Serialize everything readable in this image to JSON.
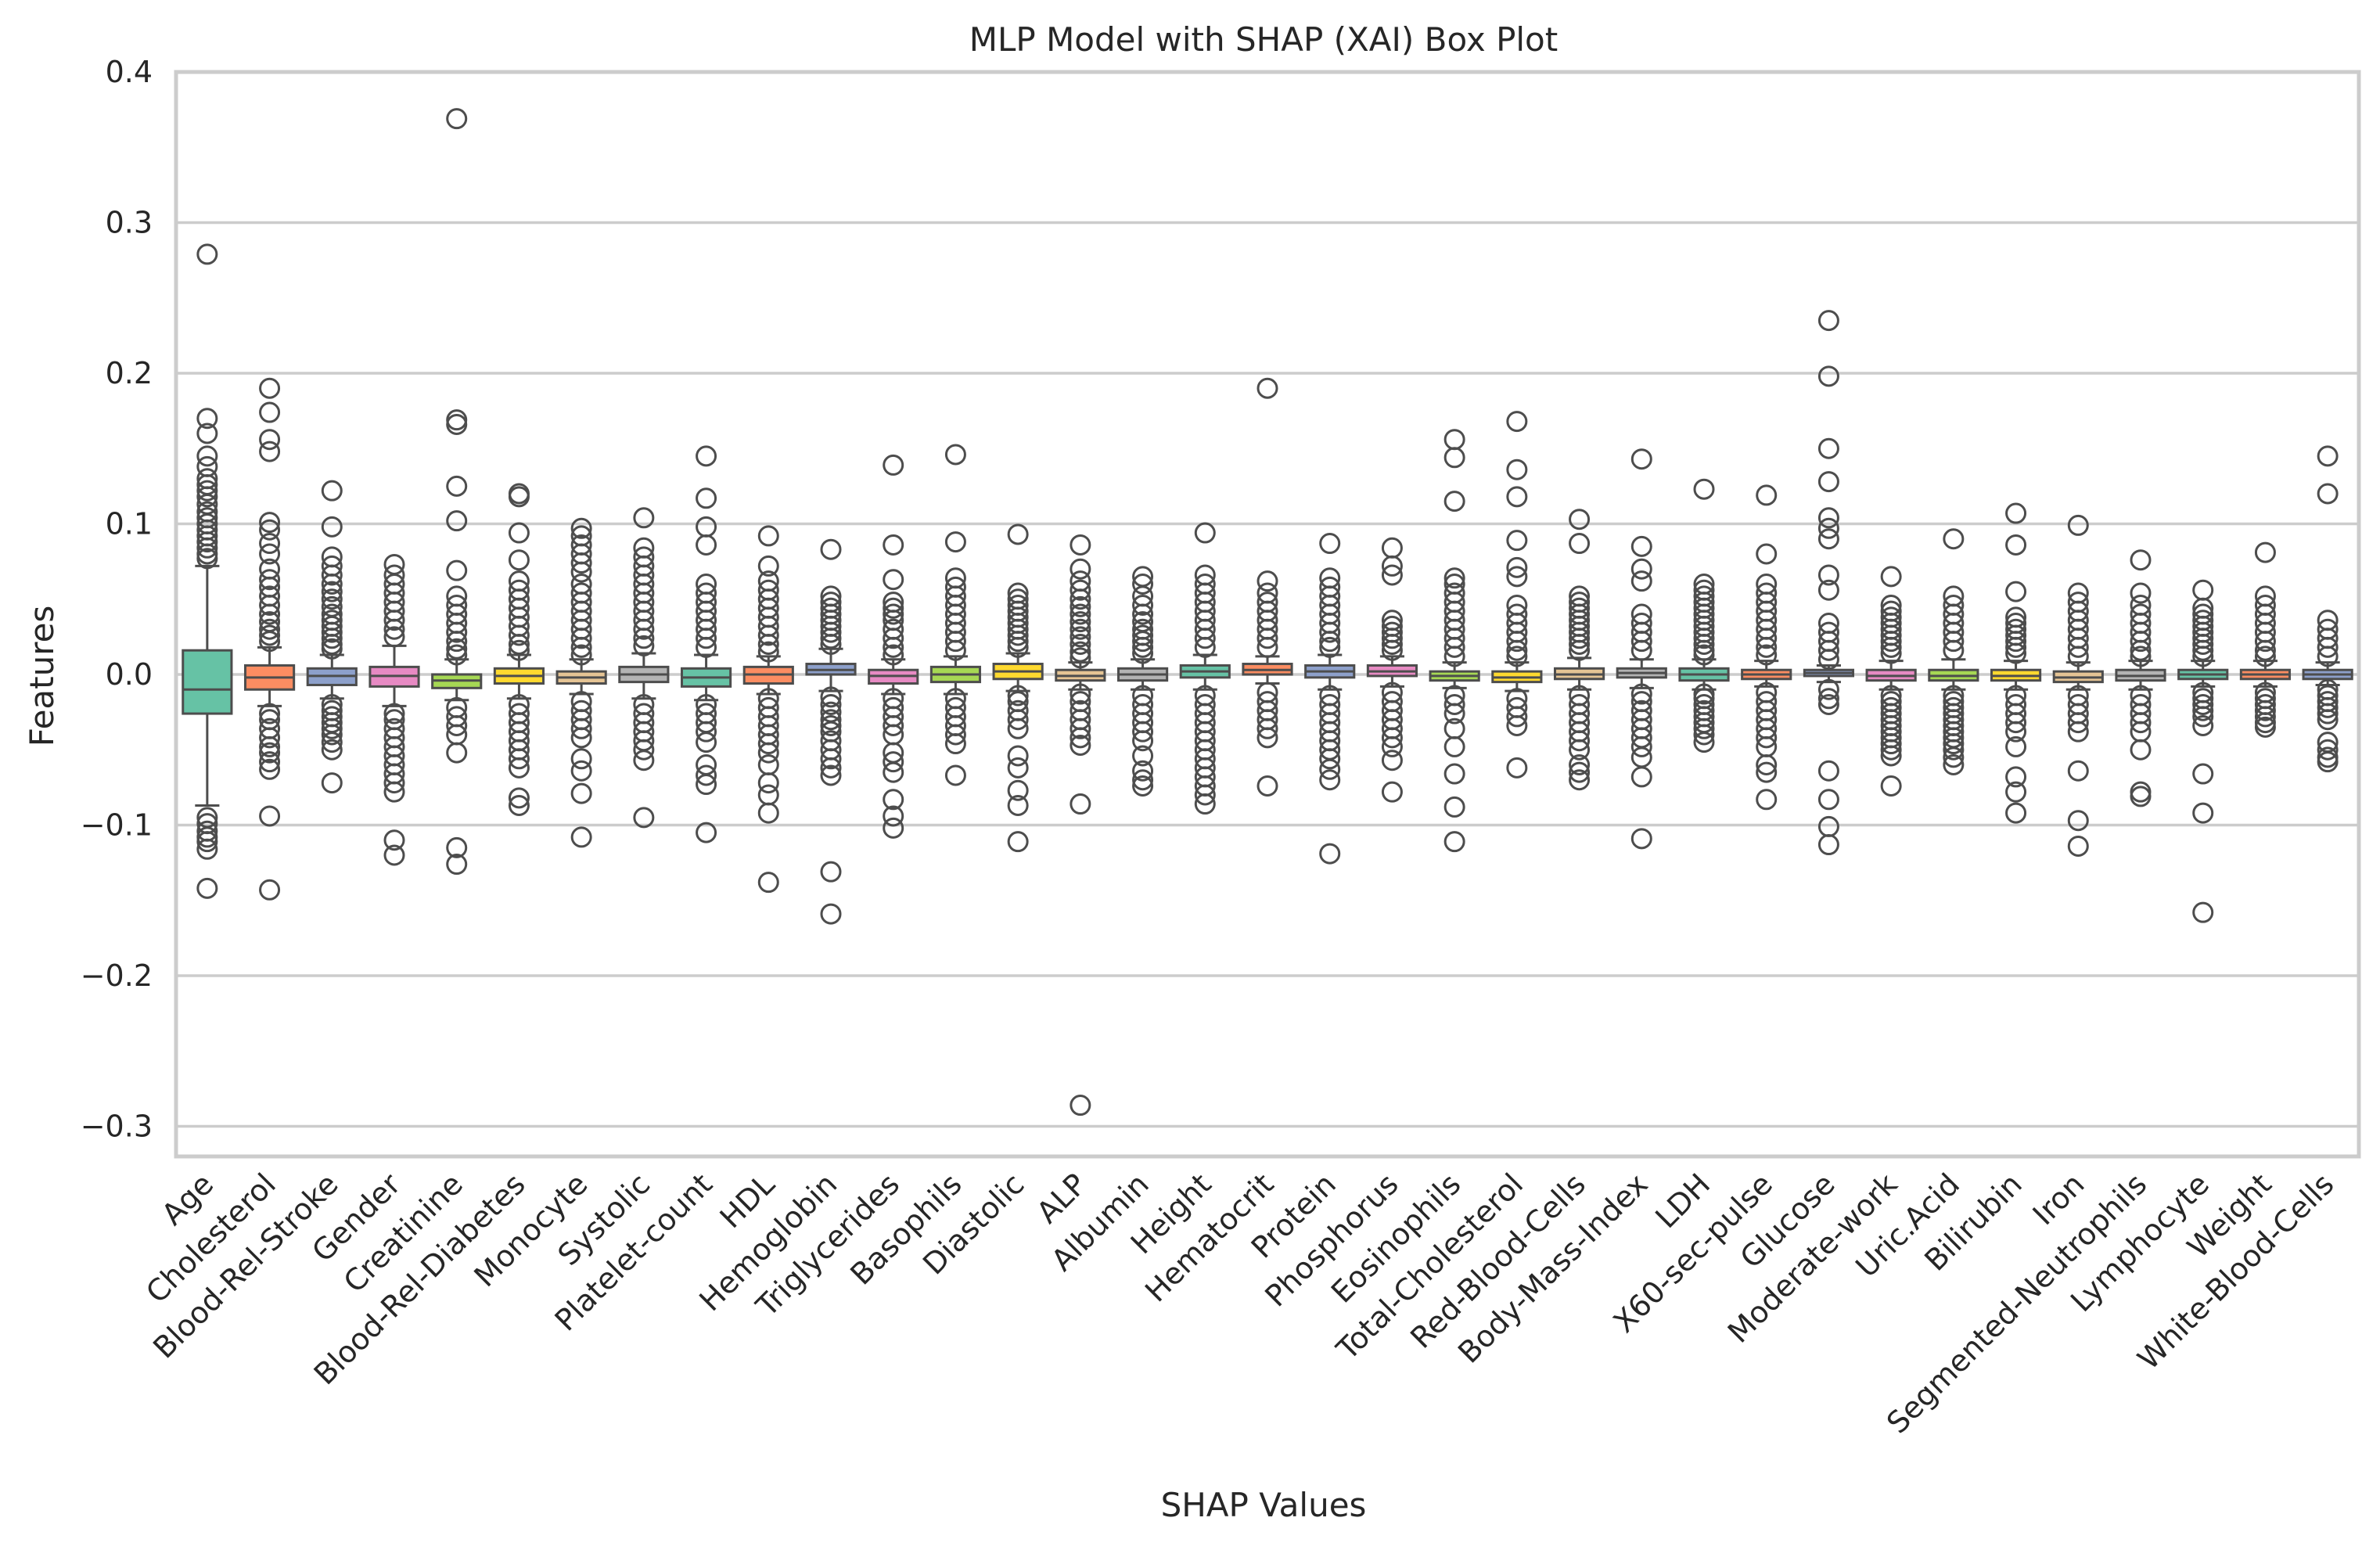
{
  "chart_data": {
    "type": "box",
    "title": "MLP Model with SHAP (XAI) Box Plot",
    "xlabel": "SHAP Values",
    "ylabel": "Features",
    "ylim": [
      -0.32,
      0.4
    ],
    "yticks": [
      -0.3,
      -0.2,
      -0.1,
      0.0,
      0.1,
      0.2,
      0.3,
      0.4
    ],
    "ytick_labels": [
      "−0.3",
      "−0.2",
      "−0.1",
      "0.0",
      "0.1",
      "0.2",
      "0.3",
      "0.4"
    ],
    "grid": true,
    "grid_axis": "y",
    "palette": [
      "#66c2a5",
      "#fc8d62",
      "#8da0cb",
      "#e78ac3",
      "#a6d854",
      "#ffd92f",
      "#e5c494",
      "#b3b3b3"
    ],
    "categories": [
      "Age",
      "Cholesterol",
      "Blood-Rel-Stroke",
      "Gender",
      "Creatinine",
      "Blood-Rel-Diabetes",
      "Monocyte",
      "Systolic",
      "Platelet-count",
      "HDL",
      "Hemoglobin",
      "Triglycerides",
      "Basophils",
      "Diastolic",
      "ALP",
      "Albumin",
      "Height",
      "Hematocrit",
      "Protein",
      "Phosphorus",
      "Eosinophils",
      "Total-Cholesterol",
      "Red-Blood-Cells",
      "Body-Mass-Index",
      "LDH",
      "X60-sec-pulse",
      "Glucose",
      "Moderate-work",
      "Uric.Acid",
      "Bilirubin",
      "Iron",
      "Segmented-Neutrophils",
      "Lymphocyte",
      "Weight",
      "White-Blood-Cells"
    ],
    "boxes": [
      {
        "q1": -0.026,
        "median": -0.01,
        "q3": 0.016,
        "whislo": -0.087,
        "whishi": 0.072,
        "fliers": [
          0.279,
          0.17,
          0.16,
          0.145,
          0.138,
          0.13,
          0.126,
          0.122,
          0.118,
          0.113,
          0.108,
          0.104,
          0.1,
          0.096,
          0.092,
          0.088,
          0.084,
          0.08,
          0.077,
          -0.095,
          -0.099,
          -0.104,
          -0.108,
          -0.111,
          -0.116,
          -0.142
        ]
      },
      {
        "q1": -0.01,
        "median": -0.002,
        "q3": 0.006,
        "whislo": -0.021,
        "whishi": 0.018,
        "fliers": [
          0.19,
          0.174,
          0.156,
          0.148,
          0.101,
          0.096,
          0.087,
          0.08,
          0.07,
          0.063,
          0.058,
          0.052,
          0.046,
          0.04,
          0.035,
          0.03,
          0.026,
          0.022,
          -0.026,
          -0.03,
          -0.036,
          -0.042,
          -0.048,
          -0.052,
          -0.058,
          -0.063,
          -0.094,
          -0.143
        ]
      },
      {
        "q1": -0.007,
        "median": -0.001,
        "q3": 0.004,
        "whislo": -0.016,
        "whishi": 0.013,
        "fliers": [
          0.122,
          0.098,
          0.078,
          0.072,
          0.066,
          0.06,
          0.055,
          0.05,
          0.045,
          0.04,
          0.036,
          0.032,
          0.028,
          0.024,
          0.02,
          0.017,
          -0.02,
          -0.024,
          -0.028,
          -0.032,
          -0.036,
          -0.04,
          -0.045,
          -0.05,
          -0.072
        ]
      },
      {
        "q1": -0.008,
        "median": -0.001,
        "q3": 0.005,
        "whislo": -0.021,
        "whishi": 0.019,
        "fliers": [
          0.073,
          0.066,
          0.06,
          0.054,
          0.048,
          0.042,
          0.036,
          0.03,
          0.025,
          -0.026,
          -0.03,
          -0.036,
          -0.042,
          -0.048,
          -0.054,
          -0.06,
          -0.066,
          -0.072,
          -0.078,
          -0.11,
          -0.12
        ]
      },
      {
        "q1": -0.009,
        "median": -0.004,
        "q3": 0.0,
        "whislo": -0.017,
        "whishi": 0.01,
        "fliers": [
          0.369,
          0.169,
          0.166,
          0.125,
          0.102,
          0.069,
          0.052,
          0.046,
          0.04,
          0.034,
          0.028,
          0.022,
          0.017,
          0.013,
          -0.022,
          -0.028,
          -0.034,
          -0.04,
          -0.052,
          -0.115,
          -0.126
        ]
      },
      {
        "q1": -0.006,
        "median": -0.001,
        "q3": 0.004,
        "whislo": -0.016,
        "whishi": 0.013,
        "fliers": [
          0.12,
          0.118,
          0.094,
          0.076,
          0.062,
          0.056,
          0.05,
          0.044,
          0.038,
          0.032,
          0.026,
          0.02,
          0.016,
          -0.02,
          -0.026,
          -0.032,
          -0.038,
          -0.044,
          -0.05,
          -0.056,
          -0.062,
          -0.082,
          -0.087
        ]
      },
      {
        "q1": -0.006,
        "median": -0.002,
        "q3": 0.002,
        "whislo": -0.013,
        "whishi": 0.01,
        "fliers": [
          0.097,
          0.092,
          0.086,
          0.08,
          0.074,
          0.068,
          0.06,
          0.054,
          0.048,
          0.042,
          0.036,
          0.03,
          0.024,
          0.018,
          0.013,
          -0.018,
          -0.024,
          -0.03,
          -0.036,
          -0.042,
          -0.056,
          -0.064,
          -0.079,
          -0.108
        ]
      },
      {
        "q1": -0.005,
        "median": 0.0,
        "q3": 0.005,
        "whislo": -0.016,
        "whishi": 0.014,
        "fliers": [
          0.104,
          0.084,
          0.078,
          0.072,
          0.066,
          0.06,
          0.054,
          0.048,
          0.042,
          0.036,
          0.03,
          0.024,
          0.019,
          -0.02,
          -0.026,
          -0.032,
          -0.038,
          -0.044,
          -0.05,
          -0.057,
          -0.095
        ]
      },
      {
        "q1": -0.008,
        "median": -0.002,
        "q3": 0.004,
        "whislo": -0.017,
        "whishi": 0.013,
        "fliers": [
          0.145,
          0.117,
          0.098,
          0.086,
          0.06,
          0.054,
          0.048,
          0.042,
          0.036,
          0.03,
          0.024,
          0.018,
          -0.02,
          -0.026,
          -0.032,
          -0.038,
          -0.045,
          -0.06,
          -0.067,
          -0.073,
          -0.105
        ]
      },
      {
        "q1": -0.006,
        "median": 0.0,
        "q3": 0.005,
        "whislo": -0.013,
        "whishi": 0.012,
        "fliers": [
          0.092,
          0.072,
          0.062,
          0.056,
          0.05,
          0.044,
          0.038,
          0.032,
          0.026,
          0.02,
          0.015,
          -0.016,
          -0.022,
          -0.028,
          -0.034,
          -0.04,
          -0.046,
          -0.052,
          -0.06,
          -0.072,
          -0.08,
          -0.092,
          -0.138
        ]
      },
      {
        "q1": 0.0,
        "median": 0.003,
        "q3": 0.007,
        "whislo": -0.011,
        "whishi": 0.017,
        "fliers": [
          0.083,
          0.052,
          0.048,
          0.044,
          0.04,
          0.036,
          0.032,
          0.028,
          0.024,
          0.02,
          -0.015,
          -0.02,
          -0.025,
          -0.03,
          -0.034,
          -0.038,
          -0.044,
          -0.05,
          -0.056,
          -0.062,
          -0.067,
          -0.131,
          -0.159
        ]
      },
      {
        "q1": -0.006,
        "median": -0.001,
        "q3": 0.003,
        "whislo": -0.013,
        "whishi": 0.01,
        "fliers": [
          0.139,
          0.086,
          0.063,
          0.048,
          0.044,
          0.04,
          0.036,
          0.03,
          0.024,
          0.018,
          0.013,
          -0.016,
          -0.022,
          -0.028,
          -0.034,
          -0.04,
          -0.052,
          -0.058,
          -0.065,
          -0.083,
          -0.094,
          -0.102
        ]
      },
      {
        "q1": -0.005,
        "median": 0.0,
        "q3": 0.005,
        "whislo": -0.013,
        "whishi": 0.012,
        "fliers": [
          0.146,
          0.088,
          0.064,
          0.058,
          0.052,
          0.046,
          0.04,
          0.034,
          0.028,
          0.022,
          0.016,
          -0.016,
          -0.022,
          -0.028,
          -0.034,
          -0.04,
          -0.046,
          -0.067
        ]
      },
      {
        "q1": -0.003,
        "median": 0.002,
        "q3": 0.007,
        "whislo": -0.011,
        "whishi": 0.014,
        "fliers": [
          0.093,
          0.054,
          0.05,
          0.046,
          0.042,
          0.038,
          0.034,
          0.03,
          0.026,
          0.022,
          0.018,
          -0.014,
          -0.018,
          -0.024,
          -0.03,
          -0.036,
          -0.054,
          -0.062,
          -0.077,
          -0.087,
          -0.111
        ]
      },
      {
        "q1": -0.004,
        "median": -0.001,
        "q3": 0.003,
        "whislo": -0.01,
        "whishi": 0.008,
        "fliers": [
          0.086,
          0.07,
          0.062,
          0.056,
          0.05,
          0.045,
          0.04,
          0.035,
          0.03,
          0.025,
          0.02,
          0.015,
          0.011,
          -0.013,
          -0.018,
          -0.024,
          -0.03,
          -0.036,
          -0.042,
          -0.047,
          -0.086,
          -0.286
        ]
      },
      {
        "q1": -0.004,
        "median": 0.0,
        "q3": 0.004,
        "whislo": -0.01,
        "whishi": 0.01,
        "fliers": [
          0.065,
          0.06,
          0.052,
          0.046,
          0.04,
          0.035,
          0.03,
          0.026,
          0.022,
          0.018,
          0.014,
          -0.014,
          -0.02,
          -0.026,
          -0.032,
          -0.038,
          -0.044,
          -0.054,
          -0.064,
          -0.07,
          -0.074
        ]
      },
      {
        "q1": -0.002,
        "median": 0.002,
        "q3": 0.006,
        "whislo": -0.01,
        "whishi": 0.013,
        "fliers": [
          0.094,
          0.066,
          0.06,
          0.054,
          0.048,
          0.042,
          0.036,
          0.03,
          0.024,
          0.018,
          -0.014,
          -0.02,
          -0.026,
          -0.032,
          -0.038,
          -0.044,
          -0.05,
          -0.056,
          -0.062,
          -0.068,
          -0.074,
          -0.08,
          -0.086
        ]
      },
      {
        "q1": 0.0,
        "median": 0.003,
        "q3": 0.007,
        "whislo": -0.006,
        "whishi": 0.012,
        "fliers": [
          0.19,
          0.062,
          0.054,
          0.048,
          0.042,
          0.036,
          0.03,
          0.024,
          0.018,
          -0.012,
          -0.018,
          -0.024,
          -0.03,
          -0.036,
          -0.042,
          -0.074
        ]
      },
      {
        "q1": -0.002,
        "median": 0.002,
        "q3": 0.006,
        "whislo": -0.01,
        "whishi": 0.013,
        "fliers": [
          0.087,
          0.064,
          0.058,
          0.052,
          0.046,
          0.04,
          0.034,
          0.028,
          0.022,
          0.018,
          -0.014,
          -0.02,
          -0.026,
          -0.032,
          -0.038,
          -0.044,
          -0.05,
          -0.056,
          -0.063,
          -0.07,
          -0.119
        ]
      },
      {
        "q1": -0.001,
        "median": 0.002,
        "q3": 0.006,
        "whislo": -0.008,
        "whishi": 0.012,
        "fliers": [
          0.084,
          0.072,
          0.066,
          0.036,
          0.032,
          0.028,
          0.024,
          0.02,
          0.016,
          -0.012,
          -0.018,
          -0.024,
          -0.03,
          -0.036,
          -0.042,
          -0.048,
          -0.057,
          -0.078
        ]
      },
      {
        "q1": -0.004,
        "median": -0.001,
        "q3": 0.002,
        "whislo": -0.009,
        "whishi": 0.008,
        "fliers": [
          0.156,
          0.144,
          0.115,
          0.064,
          0.06,
          0.054,
          0.048,
          0.042,
          0.036,
          0.03,
          0.024,
          0.018,
          0.012,
          -0.014,
          -0.02,
          -0.026,
          -0.036,
          -0.048,
          -0.066,
          -0.088,
          -0.111
        ]
      },
      {
        "q1": -0.005,
        "median": -0.002,
        "q3": 0.002,
        "whislo": -0.011,
        "whishi": 0.008,
        "fliers": [
          0.168,
          0.136,
          0.118,
          0.089,
          0.071,
          0.065,
          0.046,
          0.04,
          0.034,
          0.028,
          0.022,
          0.016,
          0.012,
          -0.016,
          -0.022,
          -0.028,
          -0.034,
          -0.062
        ]
      },
      {
        "q1": -0.003,
        "median": 0.0,
        "q3": 0.004,
        "whislo": -0.01,
        "whishi": 0.011,
        "fliers": [
          0.103,
          0.087,
          0.052,
          0.048,
          0.044,
          0.04,
          0.036,
          0.032,
          0.028,
          0.024,
          0.02,
          0.016,
          -0.014,
          -0.02,
          -0.026,
          -0.032,
          -0.038,
          -0.044,
          -0.05,
          -0.06,
          -0.065,
          -0.07
        ]
      },
      {
        "q1": -0.002,
        "median": 0.001,
        "q3": 0.004,
        "whislo": -0.009,
        "whishi": 0.01,
        "fliers": [
          0.143,
          0.085,
          0.07,
          0.062,
          0.04,
          0.034,
          0.028,
          0.022,
          0.016,
          -0.013,
          -0.018,
          -0.024,
          -0.03,
          -0.036,
          -0.042,
          -0.048,
          -0.055,
          -0.068,
          -0.109
        ]
      },
      {
        "q1": -0.004,
        "median": 0.0,
        "q3": 0.004,
        "whislo": -0.01,
        "whishi": 0.01,
        "fliers": [
          0.123,
          0.06,
          0.056,
          0.052,
          0.048,
          0.044,
          0.04,
          0.036,
          0.032,
          0.028,
          0.024,
          0.02,
          0.016,
          0.013,
          -0.013,
          -0.016,
          -0.02,
          -0.024,
          -0.028,
          -0.032,
          -0.036,
          -0.04,
          -0.045
        ]
      },
      {
        "q1": -0.003,
        "median": 0.0,
        "q3": 0.003,
        "whislo": -0.008,
        "whishi": 0.009,
        "fliers": [
          0.119,
          0.08,
          0.06,
          0.054,
          0.048,
          0.042,
          0.036,
          0.03,
          0.024,
          0.018,
          0.013,
          -0.012,
          -0.018,
          -0.024,
          -0.03,
          -0.036,
          -0.042,
          -0.048,
          -0.06,
          -0.065,
          -0.083
        ]
      },
      {
        "q1": -0.001,
        "median": 0.001,
        "q3": 0.003,
        "whislo": -0.005,
        "whishi": 0.006,
        "fliers": [
          0.235,
          0.198,
          0.15,
          0.128,
          0.104,
          0.097,
          0.09,
          0.066,
          0.056,
          0.034,
          0.028,
          0.022,
          0.016,
          0.01,
          -0.01,
          -0.016,
          -0.02,
          -0.064,
          -0.083,
          -0.101,
          -0.113
        ]
      },
      {
        "q1": -0.004,
        "median": -0.001,
        "q3": 0.003,
        "whislo": -0.01,
        "whishi": 0.009,
        "fliers": [
          0.065,
          0.046,
          0.042,
          0.038,
          0.034,
          0.03,
          0.026,
          0.022,
          0.018,
          0.014,
          -0.014,
          -0.018,
          -0.022,
          -0.026,
          -0.03,
          -0.034,
          -0.038,
          -0.042,
          -0.046,
          -0.05,
          -0.054,
          -0.074
        ]
      },
      {
        "q1": -0.004,
        "median": -0.001,
        "q3": 0.003,
        "whislo": -0.01,
        "whishi": 0.01,
        "fliers": [
          0.09,
          0.052,
          0.046,
          0.04,
          0.034,
          0.028,
          0.022,
          0.016,
          -0.014,
          -0.018,
          -0.022,
          -0.026,
          -0.03,
          -0.034,
          -0.038,
          -0.042,
          -0.046,
          -0.05,
          -0.055,
          -0.06
        ]
      },
      {
        "q1": -0.004,
        "median": -0.001,
        "q3": 0.003,
        "whislo": -0.01,
        "whishi": 0.009,
        "fliers": [
          0.107,
          0.086,
          0.055,
          0.038,
          0.034,
          0.03,
          0.026,
          0.022,
          0.018,
          0.014,
          -0.014,
          -0.02,
          -0.026,
          -0.032,
          -0.038,
          -0.048,
          -0.068,
          -0.078,
          -0.092
        ]
      },
      {
        "q1": -0.005,
        "median": -0.002,
        "q3": 0.002,
        "whislo": -0.01,
        "whishi": 0.008,
        "fliers": [
          0.099,
          0.054,
          0.048,
          0.042,
          0.036,
          0.03,
          0.024,
          0.018,
          0.012,
          -0.014,
          -0.02,
          -0.026,
          -0.032,
          -0.038,
          -0.064,
          -0.097,
          -0.114
        ]
      },
      {
        "q1": -0.004,
        "median": -0.001,
        "q3": 0.003,
        "whislo": -0.01,
        "whishi": 0.009,
        "fliers": [
          0.076,
          0.054,
          0.046,
          0.04,
          0.034,
          0.028,
          0.022,
          0.016,
          0.012,
          -0.014,
          -0.02,
          -0.026,
          -0.032,
          -0.038,
          -0.05,
          -0.078,
          -0.081
        ]
      },
      {
        "q1": -0.003,
        "median": 0.0,
        "q3": 0.003,
        "whislo": -0.008,
        "whishi": 0.009,
        "fliers": [
          0.056,
          0.044,
          0.04,
          0.036,
          0.032,
          0.028,
          0.024,
          0.02,
          0.016,
          0.012,
          -0.012,
          -0.016,
          -0.02,
          -0.024,
          -0.028,
          -0.034,
          -0.066,
          -0.092,
          -0.158
        ]
      },
      {
        "q1": -0.003,
        "median": 0.0,
        "q3": 0.003,
        "whislo": -0.008,
        "whishi": 0.009,
        "fliers": [
          0.081,
          0.052,
          0.046,
          0.04,
          0.034,
          0.028,
          0.022,
          0.016,
          0.012,
          -0.012,
          -0.016,
          -0.02,
          -0.024,
          -0.028,
          -0.032,
          -0.035
        ]
      },
      {
        "q1": -0.003,
        "median": 0.0,
        "q3": 0.003,
        "whislo": -0.007,
        "whishi": 0.008,
        "fliers": [
          0.145,
          0.12,
          0.036,
          0.03,
          0.024,
          0.018,
          0.012,
          -0.01,
          -0.014,
          -0.018,
          -0.022,
          -0.026,
          -0.03,
          -0.045,
          -0.05,
          -0.055,
          -0.058
        ]
      }
    ]
  }
}
